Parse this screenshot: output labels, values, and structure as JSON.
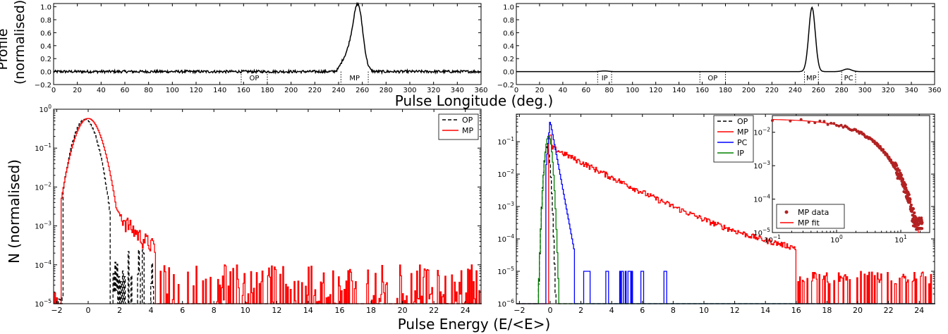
{
  "figure": {
    "xlabel_top": "Pulse Longitude (deg.)",
    "xlabel_bottom": "Pulse Energy (E/<E>)",
    "ylabel_top_line1": "Profile",
    "ylabel_top_line2": "(normalised)",
    "ylabel_bottom": "N (normalised)"
  },
  "chart_data": [
    {
      "id": "profile-left",
      "type": "line",
      "xlim": [
        0,
        360
      ],
      "ylim": [
        -0.2,
        1.05
      ],
      "xticks": [
        0,
        20,
        40,
        60,
        80,
        100,
        120,
        140,
        160,
        180,
        200,
        220,
        240,
        260,
        280,
        300,
        320,
        340,
        360
      ],
      "yticks": [
        -0.2,
        0.0,
        0.2,
        0.4,
        0.6,
        0.8,
        1.0
      ],
      "ytick_labels": [
        "−0.2",
        "0.0",
        "0.2",
        "0.4",
        "0.6",
        "0.8",
        "1.0"
      ],
      "series": [
        {
          "color": "#000000",
          "baseline_noise": 0.02,
          "peaks": [
            {
              "x": 256.5,
              "height": 0.99,
              "width": 4.0
            },
            {
              "x": 249.0,
              "height": 0.28,
              "width": 4.0
            },
            {
              "x": 243.0,
              "height": 0.07,
              "width": 2.5
            }
          ]
        }
      ],
      "regions": [
        {
          "label": "OP",
          "from": 158,
          "to": 180,
          "color": "#000000"
        },
        {
          "label": "MP",
          "from": 242,
          "to": 265,
          "color": "#ff0000"
        }
      ]
    },
    {
      "id": "profile-right",
      "type": "line",
      "xlim": [
        0,
        360
      ],
      "ylim": [
        -0.2,
        1.05
      ],
      "xticks": [
        0,
        20,
        40,
        60,
        80,
        100,
        120,
        140,
        160,
        180,
        200,
        220,
        240,
        260,
        280,
        300,
        320,
        340,
        360
      ],
      "yticks": [
        -0.2,
        0.0,
        0.2,
        0.4,
        0.6,
        0.8,
        1.0
      ],
      "ytick_labels": [
        "−0.2",
        "0.0",
        "0.2",
        "0.4",
        "0.6",
        "0.8",
        "1.0"
      ],
      "series": [
        {
          "color": "#000000",
          "baseline_noise": 0.0,
          "peaks": [
            {
              "x": 254.5,
              "height": 0.99,
              "width": 2.8
            },
            {
              "x": 285.0,
              "height": 0.04,
              "width": 3.5
            },
            {
              "x": 76.0,
              "height": 0.01,
              "width": 3.0
            }
          ]
        }
      ],
      "regions": [
        {
          "label": "IP",
          "from": 70,
          "to": 82,
          "color": "#008000"
        },
        {
          "label": "OP",
          "from": 158,
          "to": 180,
          "color": "#000000"
        },
        {
          "label": "MP",
          "from": 248,
          "to": 260,
          "color": "#ff0000"
        },
        {
          "label": "PC",
          "from": 280,
          "to": 292,
          "color": "#0000ff"
        }
      ]
    },
    {
      "id": "energy-left",
      "type": "line",
      "xlim": [
        -2.2,
        25
      ],
      "ylog": [
        -5,
        0
      ],
      "xticks": [
        -2,
        0,
        2,
        4,
        6,
        8,
        10,
        12,
        14,
        16,
        18,
        20,
        22,
        24
      ],
      "xtick_labels": [
        "−2",
        "0",
        "2",
        "4",
        "6",
        "8",
        "10",
        "12",
        "14",
        "16",
        "18",
        "20",
        "22",
        "24"
      ],
      "yticks": [
        -5,
        -4,
        -3,
        -2,
        -1,
        0
      ],
      "legend": "top-right",
      "series": [
        {
          "name": "OP",
          "color": "#000000",
          "dash": true,
          "kind": "gauss",
          "mu": -0.2,
          "sigma": 0.48,
          "amp": 0.55,
          "tail_end": 4.3,
          "sparse_from": 1.4
        },
        {
          "name": "MP",
          "color": "#ff0000",
          "dash": false,
          "kind": "mp",
          "peak": 0.0,
          "amp": 0.58,
          "tail_end": 25.0,
          "sparse_from": 4.3
        }
      ]
    },
    {
      "id": "energy-right",
      "type": "line",
      "xlim": [
        -2.2,
        25
      ],
      "ylog": [
        -6,
        -0.15
      ],
      "xticks": [
        -2,
        0,
        2,
        4,
        6,
        8,
        10,
        12,
        14,
        16,
        18,
        20,
        22,
        24
      ],
      "xtick_labels": [
        "−2",
        "0",
        "2",
        "4",
        "6",
        "8",
        "10",
        "12",
        "14",
        "16",
        "18",
        "20",
        "22",
        "24"
      ],
      "yticks": [
        -6,
        -5,
        -4,
        -3,
        -2,
        -1
      ],
      "legend": "top-center",
      "series": [
        {
          "name": "OP",
          "color": "#000000",
          "dash": true,
          "kind": "narrow",
          "mu": -0.2,
          "sigma": 0.12,
          "amp": 0.07
        },
        {
          "name": "MP",
          "color": "#ff0000",
          "dash": false,
          "kind": "mp-long",
          "amp": 0.16
        },
        {
          "name": "PC",
          "color": "#0000ff",
          "dash": false,
          "kind": "pc",
          "amp": 0.45
        },
        {
          "name": "IP",
          "color": "#008000",
          "dash": false,
          "kind": "narrow",
          "mu": -0.1,
          "sigma": 0.14,
          "amp": 0.15
        }
      ],
      "inset": {
        "type": "scatter",
        "xlog": [
          -1,
          1.45
        ],
        "ylog": [
          -5,
          -1.5
        ],
        "xticks": [
          -1,
          0,
          1
        ],
        "yticks": [
          -5,
          -4,
          -3,
          -2
        ],
        "legend": "bottom-left",
        "series": [
          {
            "name": "MP data",
            "color": "#b22222",
            "kind": "points"
          },
          {
            "name": "MP fit",
            "color": "#ff0000",
            "kind": "line"
          }
        ]
      }
    }
  ]
}
